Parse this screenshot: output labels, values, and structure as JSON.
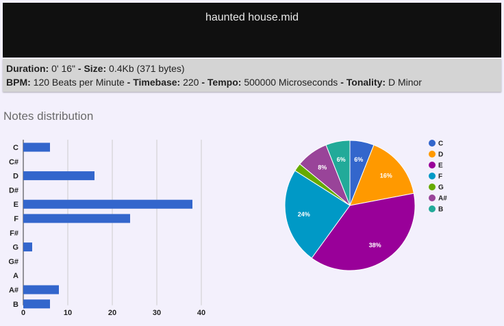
{
  "header": {
    "title": "haunted house.mid"
  },
  "info": {
    "duration_label": "Duration:",
    "duration_value": "0' 16\"",
    "sep1": " - ",
    "size_label": "Size:",
    "size_value": "0.4Kb (371 bytes)",
    "bpm_label": "BPM:",
    "bpm_value": "120 Beats per Minute",
    "sep2": " - ",
    "timebase_label": "Timebase:",
    "timebase_value": "220",
    "sep3": " - ",
    "tempo_label": "Tempo:",
    "tempo_value": "500000 Microseconds",
    "sep4": " - ",
    "tonality_label": "Tonality:",
    "tonality_value": "D Minor"
  },
  "section": {
    "title": "Notes distribution"
  },
  "chart_data": [
    {
      "type": "bar",
      "orientation": "horizontal",
      "categories": [
        "C",
        "C#",
        "D",
        "D#",
        "E",
        "F",
        "F#",
        "G",
        "G#",
        "A",
        "A#",
        "B"
      ],
      "values": [
        6,
        0,
        16,
        0,
        38,
        24,
        0,
        2,
        0,
        0,
        8,
        6
      ],
      "xlim": [
        0,
        40
      ],
      "xticks": [
        0,
        10,
        20,
        30,
        40
      ],
      "grid": true,
      "color": "#3366cc"
    },
    {
      "type": "pie",
      "labels": [
        "C",
        "D",
        "E",
        "F",
        "G",
        "A#",
        "B"
      ],
      "values": [
        6,
        16,
        38,
        24,
        2,
        8,
        6
      ],
      "slice_labels": [
        "6%",
        "16%",
        "38%",
        "24%",
        "",
        "8%",
        "6%"
      ],
      "colors": [
        "#3366cc",
        "#ff9900",
        "#990099",
        "#0099c6",
        "#66aa00",
        "#994499",
        "#22aa99"
      ],
      "legend": "right"
    }
  ]
}
